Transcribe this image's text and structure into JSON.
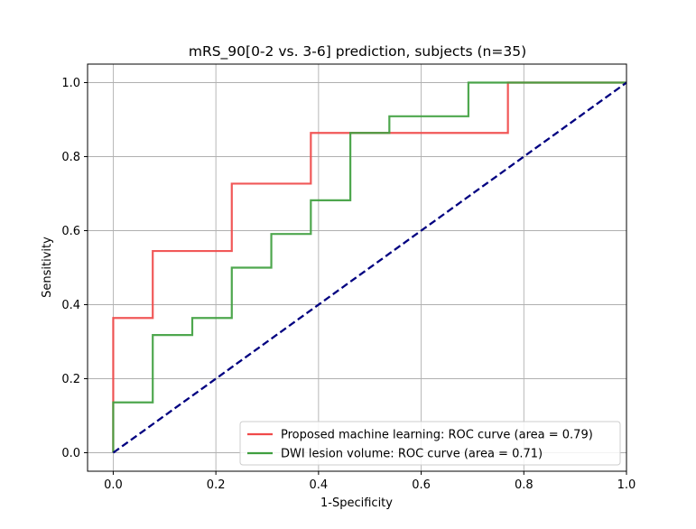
{
  "chart_data": {
    "type": "line",
    "title": "mRS_90[0-2 vs. 3-6] prediction, subjects (n=35)",
    "xlabel": "1-Specificity",
    "ylabel": "Sensitivity",
    "xlim": [
      -0.05,
      1.0
    ],
    "ylim": [
      -0.05,
      1.05
    ],
    "xticks": [
      0.0,
      0.2,
      0.4,
      0.6,
      0.8,
      1.0
    ],
    "xtick_labels": [
      "0.0",
      "0.2",
      "0.4",
      "0.6",
      "0.8",
      "1.0"
    ],
    "yticks": [
      0.0,
      0.2,
      0.4,
      0.6,
      0.8,
      1.0
    ],
    "ytick_labels": [
      "0.0",
      "0.2",
      "0.4",
      "0.6",
      "0.8",
      "1.0"
    ],
    "grid": true,
    "legend_position": "bottom-right",
    "series": [
      {
        "name": "Proposed machine learning: ROC curve (area = 0.79)",
        "color": "#f04a4a",
        "style": "solid",
        "x": [
          0.0,
          0.0,
          0.077,
          0.077,
          0.231,
          0.231,
          0.385,
          0.385,
          0.769,
          0.769,
          1.0
        ],
        "y": [
          0.0,
          0.364,
          0.364,
          0.545,
          0.545,
          0.727,
          0.727,
          0.864,
          0.864,
          1.0,
          1.0
        ]
      },
      {
        "name": "DWI lesion volume: ROC curve (area = 0.71)",
        "color": "#3f9f3f",
        "style": "solid",
        "x": [
          0.0,
          0.0,
          0.077,
          0.077,
          0.154,
          0.154,
          0.231,
          0.231,
          0.308,
          0.308,
          0.385,
          0.385,
          0.462,
          0.462,
          0.538,
          0.538,
          0.692,
          0.692,
          1.0
        ],
        "y": [
          0.0,
          0.136,
          0.136,
          0.318,
          0.318,
          0.364,
          0.364,
          0.5,
          0.5,
          0.591,
          0.591,
          0.682,
          0.682,
          0.864,
          0.864,
          0.909,
          0.909,
          1.0,
          1.0
        ]
      },
      {
        "color": "#000080",
        "style": "dashed",
        "x": [
          0.0,
          1.0
        ],
        "y": [
          0.0,
          1.0
        ]
      }
    ]
  }
}
